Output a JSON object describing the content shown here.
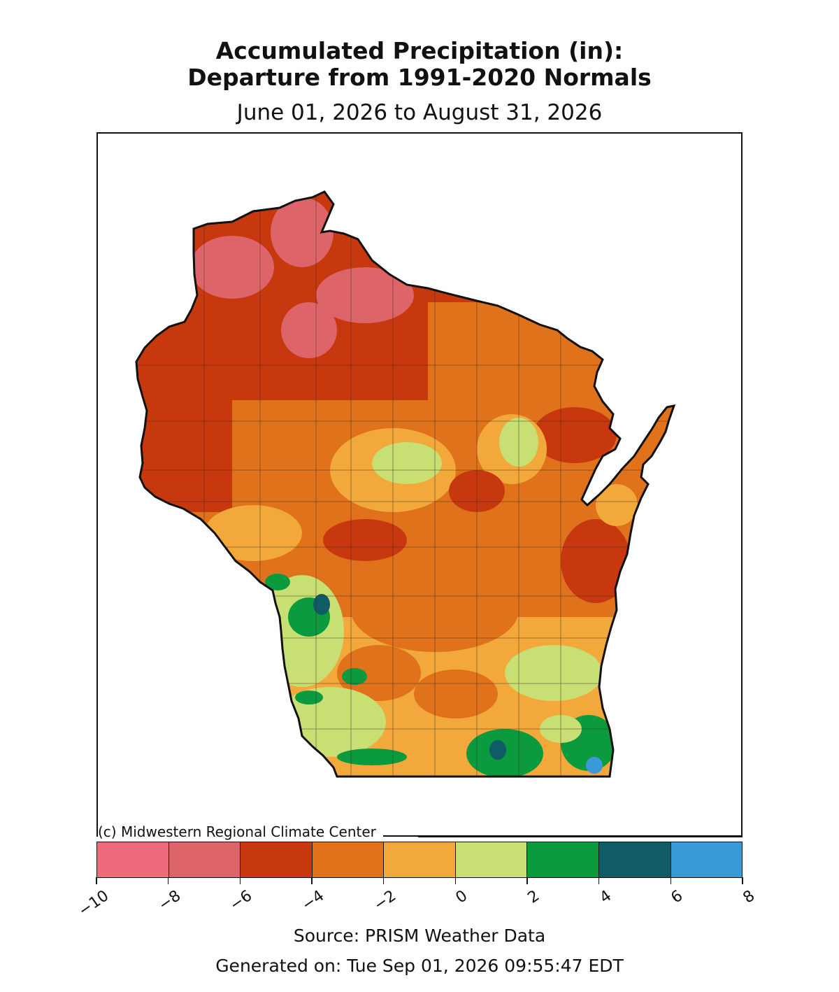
{
  "title_line1": "Accumulated Precipitation (in):",
  "title_line2": "Departure from 1991-2020 Normals",
  "subtitle": "June 01, 2026 to August 31, 2026",
  "credit": "(c) Midwestern Regional Climate Center",
  "source": "Source: PRISM Weather Data",
  "generated": "Generated on: Tue Sep 01, 2026 09:55:47 EDT",
  "colorbar": {
    "ticks": [
      "−10",
      "−8",
      "−6",
      "−4",
      "−2",
      "0",
      "2",
      "4",
      "6",
      "8"
    ],
    "colors": [
      "#ef6a7b",
      "#dd6468",
      "#c8380f",
      "#e0721c",
      "#f2a83a",
      "#c7df73",
      "#0b9a3e",
      "#0f5c66",
      "#3a9ad8"
    ]
  },
  "legend_classes": [
    {
      "range": [
        -10,
        -8
      ],
      "color": "#ef6a7b"
    },
    {
      "range": [
        -8,
        -6
      ],
      "color": "#dd6468"
    },
    {
      "range": [
        -6,
        -4
      ],
      "color": "#c8380f"
    },
    {
      "range": [
        -4,
        -2
      ],
      "color": "#e0721c"
    },
    {
      "range": [
        -2,
        0
      ],
      "color": "#f2a83a"
    },
    {
      "range": [
        0,
        2
      ],
      "color": "#c7df73"
    },
    {
      "range": [
        2,
        4
      ],
      "color": "#0b9a3e"
    },
    {
      "range": [
        4,
        6
      ],
      "color": "#0f5c66"
    },
    {
      "range": [
        6,
        8
      ],
      "color": "#3a9ad8"
    }
  ]
}
